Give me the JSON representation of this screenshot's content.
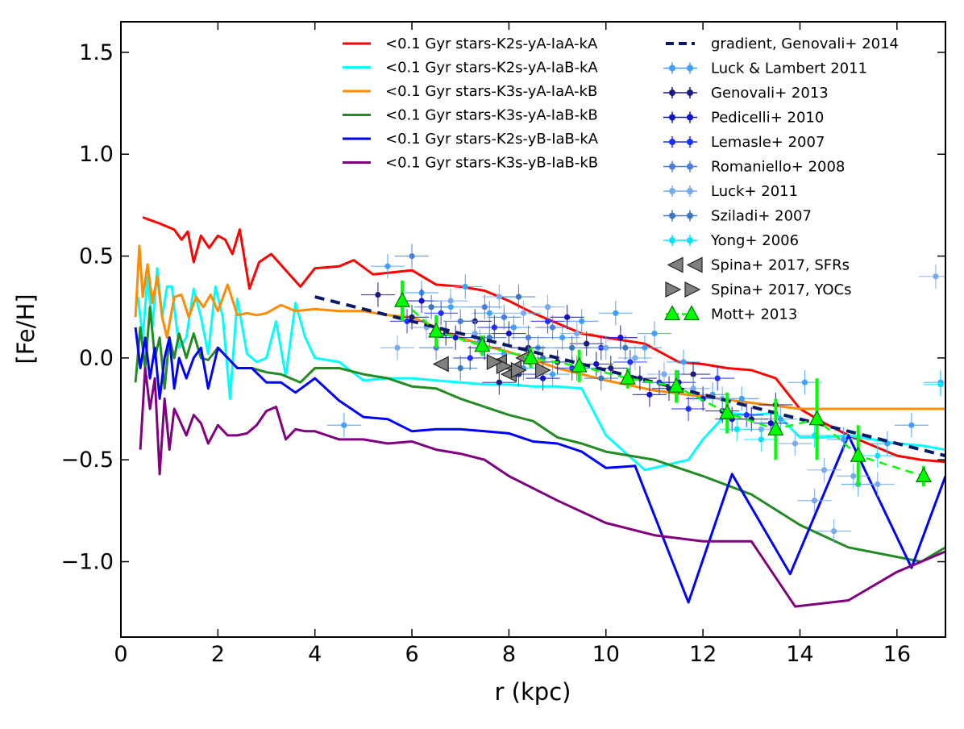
{
  "chart_data": {
    "type": "line",
    "title": "",
    "xlabel": "r (kpc)",
    "ylabel": "[Fe/H]",
    "xlim": [
      0,
      17
    ],
    "ylim": [
      -1.37,
      1.65
    ],
    "xticks": [
      0,
      2,
      4,
      6,
      8,
      10,
      12,
      14,
      16
    ],
    "yticks": [
      -1.0,
      -0.5,
      0.0,
      0.5,
      1.0,
      1.5
    ],
    "xtick_labels": [
      "0",
      "2",
      "4",
      "6",
      "8",
      "10",
      "12",
      "14",
      "16"
    ],
    "ytick_labels": [
      "−1.0",
      "−0.5",
      "0.0",
      "0.5",
      "1.0",
      "1.5"
    ],
    "grid": false,
    "model_series": [
      {
        "name": "<0.1 Gyr stars-K2s-yA-IaA-kA",
        "color": "#ff0000",
        "x": [
          0.45,
          0.8,
          1.1,
          1.25,
          1.38,
          1.5,
          1.65,
          1.82,
          2.0,
          2.15,
          2.3,
          2.45,
          2.65,
          2.85,
          3.1,
          3.4,
          3.7,
          4.0,
          4.5,
          4.8,
          5.2,
          5.6,
          6.0,
          6.5,
          7.0,
          7.5,
          8.0,
          8.5,
          9.0,
          9.5,
          10.0,
          10.8,
          11.5,
          12.0,
          12.5,
          13.0,
          13.5,
          14.0,
          14.5,
          15.0,
          15.5,
          16.0,
          16.5,
          17.0
        ],
        "y": [
          0.69,
          0.66,
          0.63,
          0.58,
          0.62,
          0.47,
          0.6,
          0.54,
          0.6,
          0.58,
          0.51,
          0.63,
          0.34,
          0.47,
          0.51,
          0.43,
          0.35,
          0.44,
          0.45,
          0.48,
          0.41,
          0.42,
          0.43,
          0.36,
          0.35,
          0.33,
          0.28,
          0.22,
          0.17,
          0.12,
          0.1,
          0.07,
          -0.02,
          -0.03,
          -0.05,
          -0.06,
          -0.1,
          -0.25,
          -0.32,
          -0.38,
          -0.43,
          -0.48,
          -0.5,
          -0.51
        ]
      },
      {
        "name": "<0.1 Gyr stars-K2s-yA-IaB-kA",
        "color": "#00ffff",
        "x": [
          0.35,
          0.45,
          0.55,
          0.65,
          0.75,
          0.85,
          0.95,
          1.05,
          1.2,
          1.35,
          1.5,
          1.65,
          1.8,
          1.95,
          2.1,
          2.25,
          2.4,
          2.6,
          2.8,
          3.0,
          3.2,
          3.4,
          3.6,
          3.8,
          4.0,
          4.5,
          5.0,
          5.5,
          6.0,
          6.5,
          7.0,
          7.5,
          8.0,
          8.5,
          9.0,
          9.5,
          10.0,
          10.8,
          11.7,
          12.0,
          12.5,
          13.0,
          13.5,
          14.0,
          14.5,
          15.0,
          15.5,
          16.0,
          16.5,
          17.0
        ],
        "y": [
          0.3,
          0.1,
          0.4,
          0.15,
          0.44,
          0.2,
          0.35,
          0.35,
          0.05,
          0.1,
          0.34,
          0.2,
          0.02,
          0.35,
          0.2,
          -0.2,
          0.29,
          0.02,
          -0.02,
          0.0,
          0.18,
          -0.09,
          0.27,
          0.1,
          0.0,
          -0.02,
          -0.11,
          -0.1,
          -0.1,
          -0.11,
          -0.12,
          -0.13,
          -0.13,
          -0.14,
          -0.14,
          -0.15,
          -0.38,
          -0.55,
          -0.5,
          -0.4,
          -0.27,
          -0.28,
          -0.27,
          -0.39,
          -0.39,
          -0.38,
          -0.4,
          -0.42,
          -0.43,
          -0.45
        ]
      },
      {
        "name": "<0.1 Gyr stars-K3s-yA-IaA-kB",
        "color": "#ff8c00",
        "x": [
          0.3,
          0.38,
          0.45,
          0.55,
          0.65,
          0.75,
          0.85,
          0.95,
          1.1,
          1.25,
          1.4,
          1.55,
          1.7,
          1.85,
          2.0,
          2.2,
          2.4,
          2.6,
          2.8,
          3.0,
          3.3,
          3.6,
          4.0,
          4.5,
          5.0,
          5.5,
          6.0,
          6.5,
          7.0,
          7.5,
          8.0,
          8.5,
          9.0,
          9.5,
          10.0,
          11.0,
          12.0,
          13.0,
          14.0,
          15.0,
          16.0,
          17.0
        ],
        "y": [
          0.2,
          0.55,
          0.3,
          0.46,
          0.27,
          0.4,
          0.2,
          0.1,
          0.3,
          0.31,
          0.2,
          0.3,
          0.25,
          0.31,
          0.23,
          0.36,
          0.21,
          0.22,
          0.21,
          0.22,
          0.26,
          0.23,
          0.24,
          0.23,
          0.23,
          0.21,
          0.2,
          0.15,
          0.1,
          0.06,
          0.03,
          -0.01,
          -0.05,
          -0.08,
          -0.11,
          -0.16,
          -0.19,
          -0.22,
          -0.25,
          -0.25,
          -0.25,
          -0.25
        ]
      },
      {
        "name": "<0.1 Gyr stars-K3s-yA-IaB-kB",
        "color": "#228b22",
        "x": [
          0.3,
          0.4,
          0.5,
          0.6,
          0.7,
          0.8,
          0.9,
          1.0,
          1.1,
          1.2,
          1.35,
          1.5,
          1.65,
          1.8,
          2.0,
          2.2,
          2.4,
          2.7,
          3.0,
          3.3,
          3.7,
          4.0,
          4.5,
          5.0,
          5.5,
          6.0,
          6.5,
          7.0,
          7.5,
          8.0,
          8.5,
          9.0,
          9.5,
          10.0,
          11.0,
          12.0,
          13.0,
          14.0,
          15.0,
          16.5,
          17.0
        ],
        "y": [
          -0.12,
          0.15,
          -0.05,
          0.25,
          0.0,
          0.1,
          -0.15,
          0.1,
          0.0,
          0.12,
          0.0,
          0.12,
          0.0,
          -0.01,
          0.05,
          0.0,
          -0.05,
          -0.05,
          -0.07,
          -0.08,
          -0.12,
          -0.05,
          -0.05,
          -0.08,
          -0.1,
          -0.14,
          -0.15,
          -0.2,
          -0.24,
          -0.28,
          -0.31,
          -0.39,
          -0.42,
          -0.46,
          -0.5,
          -0.58,
          -0.67,
          -0.82,
          -0.93,
          -1.0,
          -0.93
        ]
      },
      {
        "name": "<0.1 Gyr stars-K2s-yB-IaB-kA",
        "color": "#0000ff",
        "x": [
          0.3,
          0.4,
          0.5,
          0.6,
          0.7,
          0.8,
          0.9,
          1.0,
          1.1,
          1.2,
          1.35,
          1.5,
          1.65,
          1.8,
          2.0,
          2.2,
          2.4,
          2.7,
          3.0,
          3.3,
          3.6,
          4.0,
          4.5,
          5.0,
          5.5,
          6.0,
          6.5,
          7.0,
          7.5,
          8.0,
          8.5,
          9.0,
          9.5,
          10.0,
          10.6,
          11.7,
          12.6,
          13.8,
          15.0,
          16.3,
          17.0
        ],
        "y": [
          0.15,
          -0.05,
          0.1,
          -0.1,
          0.05,
          -0.2,
          0.0,
          0.1,
          -0.15,
          0.0,
          -0.1,
          0.0,
          0.05,
          -0.15,
          0.05,
          0.0,
          -0.05,
          -0.05,
          -0.12,
          -0.12,
          -0.17,
          -0.1,
          -0.21,
          -0.29,
          -0.3,
          -0.36,
          -0.35,
          -0.35,
          -0.36,
          -0.37,
          -0.41,
          -0.42,
          -0.46,
          -0.54,
          -0.53,
          -1.2,
          -0.57,
          -1.06,
          -0.38,
          -1.03,
          -0.58
        ]
      },
      {
        "name": "<0.1 Gyr stars-K3s-yB-IaB-kB",
        "color": "#800080",
        "x": [
          0.4,
          0.5,
          0.6,
          0.7,
          0.8,
          0.9,
          1.0,
          1.1,
          1.2,
          1.35,
          1.5,
          1.65,
          1.8,
          2.0,
          2.2,
          2.4,
          2.6,
          2.8,
          3.0,
          3.2,
          3.4,
          3.6,
          3.8,
          4.0,
          4.5,
          5.0,
          5.5,
          6.0,
          6.5,
          7.0,
          7.5,
          8.0,
          9.0,
          10.0,
          11.0,
          12.0,
          13.0,
          13.9,
          15.0,
          16.0,
          17.0
        ],
        "y": [
          -0.45,
          -0.05,
          -0.25,
          -0.1,
          -0.57,
          -0.2,
          -0.45,
          -0.25,
          -0.3,
          -0.38,
          -0.28,
          -0.32,
          -0.42,
          -0.33,
          -0.38,
          -0.38,
          -0.37,
          -0.33,
          -0.26,
          -0.24,
          -0.4,
          -0.35,
          -0.36,
          -0.36,
          -0.4,
          -0.4,
          -0.42,
          -0.41,
          -0.45,
          -0.47,
          -0.5,
          -0.58,
          -0.7,
          -0.81,
          -0.87,
          -0.9,
          -0.9,
          -1.22,
          -1.19,
          -1.05,
          -0.95
        ]
      }
    ],
    "gradient": {
      "name": "gradient, Genovali+ 2014",
      "color": "#0b1a66",
      "x": [
        4.0,
        17.0
      ],
      "y": [
        0.3,
        -0.48
      ]
    },
    "observations": [
      {
        "name": "Luck & Lambert 2011",
        "color": "#3fa0ff",
        "points": [
          [
            5.5,
            0.45
          ],
          [
            6.2,
            0.32
          ],
          [
            6.8,
            0.25
          ],
          [
            7.1,
            0.35
          ],
          [
            7.4,
            0.08
          ],
          [
            7.6,
            0.22
          ],
          [
            7.9,
            0.02
          ],
          [
            8.1,
            0.15
          ],
          [
            8.3,
            -0.05
          ],
          [
            8.6,
            0.05
          ],
          [
            8.9,
            -0.08
          ],
          [
            9.1,
            0.1
          ],
          [
            9.5,
            0.18
          ],
          [
            10.2,
            0.22
          ],
          [
            10.8,
            0.05
          ],
          [
            11.0,
            0.12
          ],
          [
            11.6,
            -0.02
          ],
          [
            12.2,
            -0.18
          ],
          [
            12.8,
            -0.2
          ],
          [
            13.6,
            -0.3
          ],
          [
            14.1,
            -0.12
          ],
          [
            14.9,
            -0.4
          ],
          [
            15.2,
            -0.62
          ],
          [
            15.8,
            -0.42
          ],
          [
            16.3,
            -0.33
          ],
          [
            16.9,
            -0.12
          ],
          [
            4.6,
            -0.33
          ]
        ]
      },
      {
        "name": "Genovali+ 2013",
        "color": "#1a1a80",
        "points": [
          [
            5.3,
            0.31
          ],
          [
            6.0,
            0.2
          ],
          [
            6.7,
            0.12
          ],
          [
            7.3,
            0.18
          ],
          [
            7.8,
            -0.12
          ],
          [
            8.4,
            0.05
          ],
          [
            9.0,
            -0.02
          ],
          [
            9.6,
            0.07
          ],
          [
            10.1,
            -0.05
          ],
          [
            10.7,
            -0.1
          ],
          [
            11.3,
            -0.15
          ],
          [
            11.8,
            -0.08
          ],
          [
            12.4,
            -0.26
          ],
          [
            13.0,
            -0.3
          ],
          [
            13.5,
            -0.23
          ]
        ]
      },
      {
        "name": "Pedicelli+ 2010",
        "color": "#1010d0",
        "points": [
          [
            6.2,
            0.28
          ],
          [
            6.9,
            0.1
          ],
          [
            7.5,
            0.05
          ],
          [
            8.0,
            0.12
          ],
          [
            8.7,
            -0.1
          ],
          [
            9.2,
            0.2
          ],
          [
            9.8,
            -0.03
          ],
          [
            10.3,
            0.1
          ],
          [
            10.9,
            -0.18
          ],
          [
            11.5,
            -0.12
          ],
          [
            12.0,
            -0.2
          ],
          [
            12.6,
            -0.3
          ],
          [
            13.4,
            -0.32
          ]
        ]
      },
      {
        "name": "Lemasle+ 2007",
        "color": "#1f2fff",
        "points": [
          [
            5.9,
            0.18
          ],
          [
            6.6,
            0.22
          ],
          [
            7.2,
            0.0
          ],
          [
            7.7,
            0.15
          ],
          [
            8.2,
            -0.08
          ],
          [
            8.8,
            0.18
          ],
          [
            9.3,
            -0.05
          ],
          [
            9.9,
            0.05
          ],
          [
            10.5,
            -0.02
          ],
          [
            11.1,
            -0.12
          ],
          [
            11.7,
            -0.25
          ],
          [
            12.3,
            -0.1
          ],
          [
            12.9,
            -0.28
          ]
        ]
      },
      {
        "name": "Romaniello+ 2008",
        "color": "#4a7de0",
        "points": [
          [
            6.0,
            0.5
          ],
          [
            6.5,
            0.05
          ],
          [
            7.0,
            0.18
          ],
          [
            7.5,
            0.25
          ],
          [
            7.9,
            0.2
          ],
          [
            8.4,
            0.1
          ],
          [
            8.9,
            0.15
          ],
          [
            9.4,
            -0.05
          ]
        ]
      },
      {
        "name": "Luck+ 2011",
        "color": "#78aaf0",
        "points": [
          [
            5.7,
            0.05
          ],
          [
            6.3,
            0.15
          ],
          [
            6.8,
            0.28
          ],
          [
            7.3,
            0.12
          ],
          [
            7.8,
            0.3
          ],
          [
            8.3,
            0.22
          ],
          [
            8.8,
            0.25
          ],
          [
            9.4,
            0.12
          ],
          [
            10.0,
            0.05
          ],
          [
            10.6,
            0.0
          ],
          [
            11.2,
            -0.08
          ],
          [
            11.8,
            -0.15
          ],
          [
            12.4,
            -0.2
          ],
          [
            13.2,
            -0.35
          ],
          [
            13.9,
            -0.42
          ],
          [
            14.5,
            -0.55
          ],
          [
            15.1,
            -0.58
          ],
          [
            15.6,
            -0.62
          ],
          [
            16.8,
            0.4
          ],
          [
            14.7,
            -0.85
          ],
          [
            14.3,
            -0.7
          ]
        ]
      },
      {
        "name": "Sziladi+ 2007",
        "color": "#3a78c0",
        "points": [
          [
            6.4,
            0.25
          ],
          [
            7.0,
            -0.05
          ],
          [
            7.6,
            0.1
          ],
          [
            8.2,
            0.3
          ],
          [
            8.7,
            0.0
          ],
          [
            9.3,
            0.05
          ],
          [
            9.9,
            -0.1
          ],
          [
            10.4,
            0.05
          ]
        ]
      },
      {
        "name": "Yong+ 2006",
        "color": "#00e5ff",
        "points": [
          [
            13.2,
            -0.4
          ],
          [
            14.3,
            -0.38
          ],
          [
            15.6,
            -0.48
          ],
          [
            16.9,
            -0.13
          ],
          [
            12.7,
            -0.35
          ]
        ]
      }
    ],
    "spina_sfrs": {
      "name": "Spina+ 2017, SFRs",
      "color": "#808080",
      "points": [
        [
          6.6,
          -0.03
        ],
        [
          7.8,
          -0.02
        ],
        [
          8.1,
          -0.05
        ],
        [
          8.3,
          0.0
        ],
        [
          8.0,
          -0.08
        ]
      ]
    },
    "spina_yocs": {
      "name": "Spina+ 2017, YOCs",
      "color": "#808080",
      "points": [
        [
          7.9,
          -0.04
        ],
        [
          8.2,
          -0.06
        ],
        [
          8.7,
          -0.06
        ],
        [
          7.7,
          -0.02
        ]
      ]
    },
    "mott": {
      "name": "Mott+ 2013",
      "color": "#00ff00",
      "edge": "#007000",
      "x": [
        5.8,
        6.5,
        7.45,
        8.45,
        9.45,
        10.45,
        11.45,
        12.5,
        13.5,
        14.35,
        15.2,
        16.55
      ],
      "y": [
        0.28,
        0.13,
        0.06,
        0.0,
        -0.04,
        -0.1,
        -0.14,
        -0.27,
        -0.35,
        -0.3,
        -0.48,
        -0.58
      ],
      "yerr": [
        0.1,
        0.08,
        0.05,
        0.05,
        0.08,
        0.05,
        0.08,
        0.1,
        0.15,
        0.2,
        0.15,
        0.05
      ]
    },
    "legend_left": [
      "<0.1 Gyr stars-K2s-yA-IaA-kA",
      "<0.1 Gyr stars-K2s-yA-IaB-kA",
      "<0.1 Gyr stars-K3s-yA-IaA-kB",
      "<0.1 Gyr stars-K3s-yA-IaB-kB",
      "<0.1 Gyr stars-K2s-yB-IaB-kA",
      "<0.1 Gyr stars-K3s-yB-IaB-kB"
    ],
    "legend_right": [
      "gradient, Genovali+ 2014",
      "Luck & Lambert 2011",
      "Genovali+ 2013",
      "Pedicelli+ 2010",
      "Lemasle+ 2007",
      "Romaniello+ 2008",
      "Luck+ 2011",
      "Sziladi+ 2007",
      "Yong+ 2006",
      "Spina+ 2017, SFRs",
      "Spina+ 2017, YOCs",
      "Mott+ 2013"
    ],
    "legend_placement": "top-right"
  }
}
